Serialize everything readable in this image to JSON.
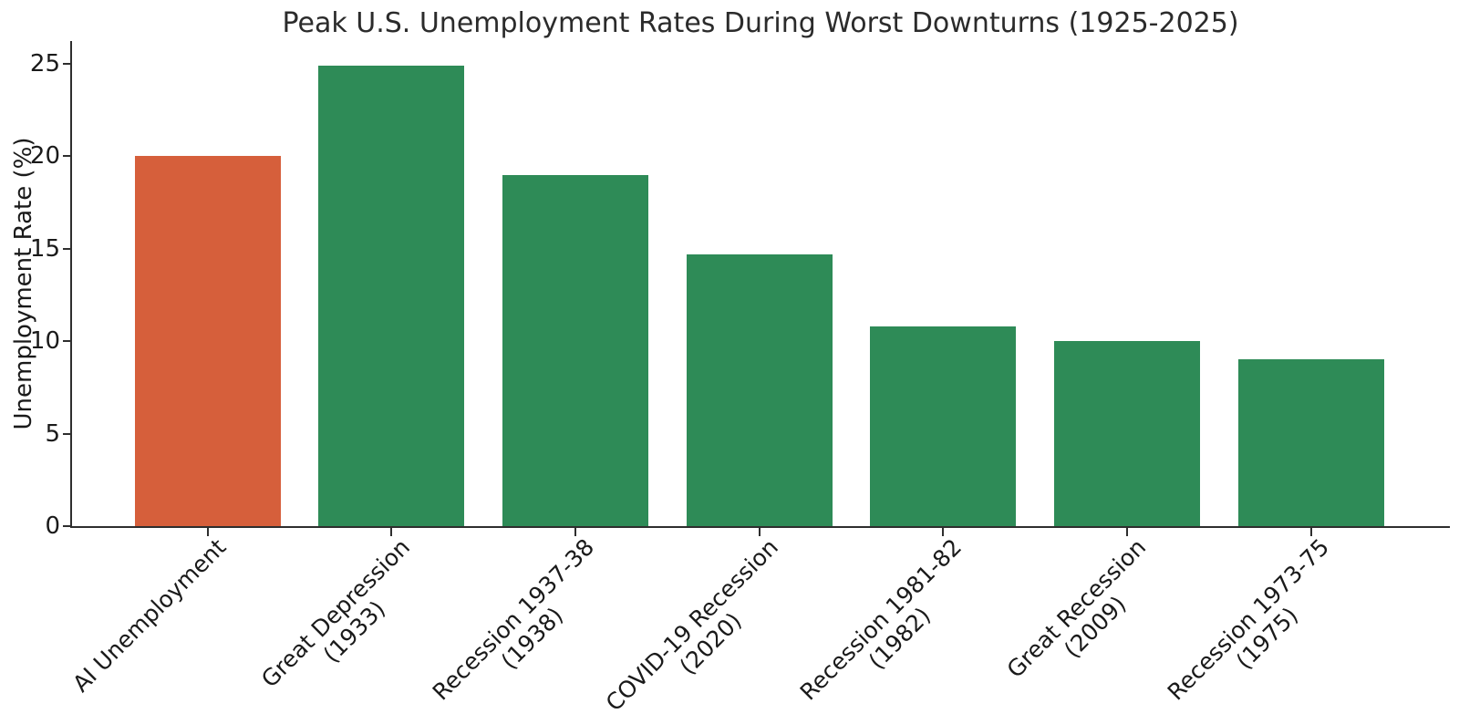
{
  "chart_data": {
    "type": "bar",
    "title": "Peak U.S. Unemployment Rates During Worst Downturns (1925-2025)",
    "xlabel": "",
    "ylabel": "Unemployment Rate (%)",
    "categories": [
      [
        "AI Unemployment"
      ],
      [
        "Great Depression",
        "(1933)"
      ],
      [
        "Recession 1937-38",
        "(1938)"
      ],
      [
        "COVID-19 Recession",
        "(2020)"
      ],
      [
        "Recession 1981-82",
        "(1982)"
      ],
      [
        "Great Recession",
        "(2009)"
      ],
      [
        "Recession 1973-75",
        "(1975)"
      ]
    ],
    "values": [
      20.0,
      24.9,
      19.0,
      14.7,
      10.8,
      10.0,
      9.0
    ],
    "bar_colors": [
      "#d65f3b",
      "#2e8b57",
      "#2e8b57",
      "#2e8b57",
      "#2e8b57",
      "#2e8b57",
      "#2e8b57"
    ],
    "highlight_color": "#d65f3b",
    "default_color": "#2e8b57",
    "yticks": [
      0,
      5,
      10,
      15,
      20,
      25
    ],
    "ylim": [
      0,
      26.2
    ],
    "grid": false,
    "legend": null,
    "spine_color": "#2e2e2e",
    "text_color": "#1a1a1a"
  }
}
